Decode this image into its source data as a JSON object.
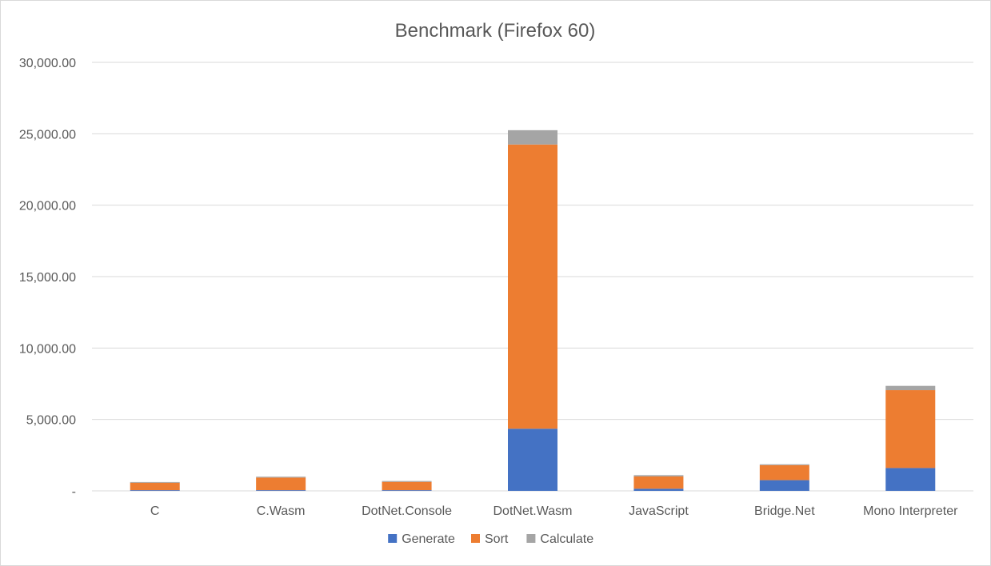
{
  "chart_data": {
    "type": "bar",
    "stacked": true,
    "title": "Benchmark (Firefox 60)",
    "xlabel": "",
    "ylabel": "",
    "ylim": [
      0,
      30000
    ],
    "y_ticks": [
      0,
      5000,
      10000,
      15000,
      20000,
      25000,
      30000
    ],
    "y_tick_labels": [
      "-",
      "5,000.00",
      "10,000.00",
      "15,000.00",
      "20,000.00",
      "25,000.00",
      "30,000.00"
    ],
    "grid": true,
    "legend_position": "bottom",
    "categories": [
      "C",
      "C.Wasm",
      "DotNet.Console",
      "DotNet.Wasm",
      "JavaScript",
      "Bridge.Net",
      "Mono Interpreter"
    ],
    "series": [
      {
        "name": "Generate",
        "color": "#4472C4",
        "values": [
          50,
          50,
          50,
          4350,
          150,
          750,
          1600
        ]
      },
      {
        "name": "Sort",
        "color": "#ED7D31",
        "values": [
          520,
          880,
          580,
          19900,
          860,
          1050,
          5450
        ]
      },
      {
        "name": "Calculate",
        "color": "#A5A5A5",
        "values": [
          50,
          60,
          60,
          1000,
          90,
          60,
          300
        ]
      }
    ]
  }
}
